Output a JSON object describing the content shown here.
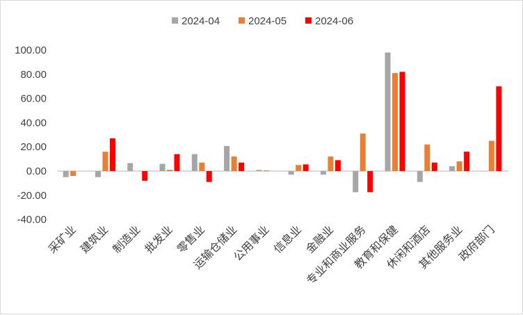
{
  "chart_data": {
    "type": "bar",
    "title": "",
    "xlabel": "",
    "ylabel": "",
    "ylim": [
      -40,
      100
    ],
    "yticks": [
      "100.00",
      "80.00",
      "60.00",
      "40.00",
      "20.00",
      "0.00",
      "-20.00",
      "-40.00"
    ],
    "grid": false,
    "legend_position": "top",
    "categories": [
      "采矿业",
      "建筑业",
      "制造业",
      "批发业",
      "零售业",
      "运输仓储业",
      "公用事业",
      "信息业",
      "金融业",
      "专业和商业服务",
      "教育和保健",
      "休闲和酒店",
      "其他服务业",
      "政府部门"
    ],
    "series": [
      {
        "name": "2024-04",
        "color": "#a6a6a6",
        "values": [
          -5,
          -5,
          6.6,
          6,
          14,
          20.7,
          1,
          -3,
          -3,
          -17.5,
          98,
          -9,
          4,
          0
        ]
      },
      {
        "name": "2024-05",
        "color": "#ed7d31",
        "values": [
          -4,
          16,
          0,
          1,
          7,
          12,
          0.5,
          5,
          12,
          31,
          81,
          22,
          8,
          25
        ]
      },
      {
        "name": "2024-06",
        "color": "#ff0000",
        "values": [
          0,
          27,
          -8,
          14,
          -9,
          7,
          0,
          5.5,
          9,
          -17.5,
          82,
          7,
          16,
          70
        ]
      }
    ]
  }
}
